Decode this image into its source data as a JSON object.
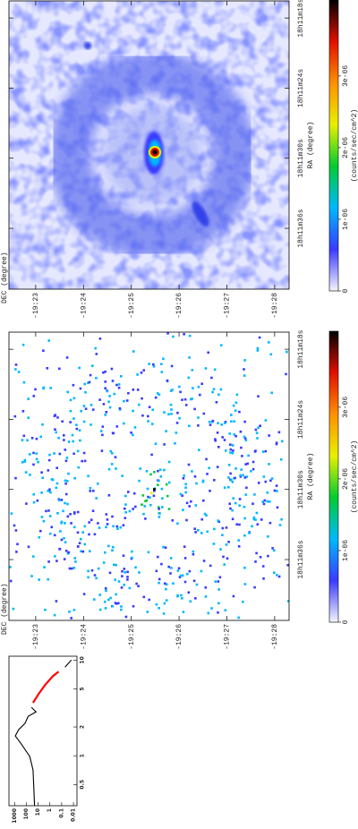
{
  "chart_data": [
    {
      "type": "image",
      "xlabel": "RA (degree)",
      "ylabel": "DEC (degree)",
      "xlim": [
        272.9217,
        272.8189
      ],
      "xticks": [
        {
          "value": 272.825,
          "label": "18h11m18s"
        },
        {
          "value": 272.85,
          "label": "18h11m24s"
        },
        {
          "value": 272.875,
          "label": "18h11m30s"
        },
        {
          "value": 272.9,
          "label": "18h11m36s"
        }
      ],
      "ylim": [
        -19.4717,
        -19.374
      ],
      "yticks": [
        {
          "value": -19.38333,
          "label": "-19:23"
        },
        {
          "value": -19.4,
          "label": "-19:24"
        },
        {
          "value": -19.41667,
          "label": "-19:25"
        },
        {
          "value": -19.43333,
          "label": "-19:26"
        },
        {
          "value": -19.45,
          "label": "-19:27"
        },
        {
          "value": -19.46667,
          "label": "-19:28"
        }
      ],
      "clim": [
        0,
        4.06e-06
      ],
      "cticks": [
        0,
        {
          "value": 1e-06,
          "label": "1e-06"
        },
        {
          "value": 2e-06,
          "label": "2e-06"
        },
        {
          "value": 3e-06,
          "label": "3e-06"
        }
      ],
      "clabel": "(counts/sec/cm^2)",
      "colormap": [
        "#f4f4ff",
        "#3a3aff",
        "#00b8ff",
        "#00cc30",
        "#e8f000",
        "#ff9000",
        "#e01000",
        "#000000"
      ]
    },
    {
      "type": "image",
      "xlabel": "RA (degree)",
      "ylabel": "DEC (degree)",
      "xlim": [
        272.9217,
        272.8189
      ],
      "xticks": [
        {
          "value": 272.825,
          "label": "18h11m18s"
        },
        {
          "value": 272.85,
          "label": "18h11m24s"
        },
        {
          "value": 272.875,
          "label": "18h11m30s"
        },
        {
          "value": 272.9,
          "label": "18h11m36s"
        }
      ],
      "ylim": [
        -19.4717,
        -19.374
      ],
      "yticks": [
        {
          "value": -19.38333,
          "label": "-19:23"
        },
        {
          "value": -19.4,
          "label": "-19:24"
        },
        {
          "value": -19.41667,
          "label": "-19:25"
        },
        {
          "value": -19.43333,
          "label": "-19:26"
        },
        {
          "value": -19.45,
          "label": "-19:27"
        },
        {
          "value": -19.46667,
          "label": "-19:28"
        }
      ],
      "clim": [
        0,
        4.06e-06
      ],
      "cticks": [
        0,
        {
          "value": 1e-06,
          "label": "1e-06"
        },
        {
          "value": 2e-06,
          "label": "2e-06"
        },
        {
          "value": 3e-06,
          "label": "3e-06"
        }
      ],
      "clabel": "(counts/sec/cm^2)",
      "colormap": [
        "#f4f4ff",
        "#3a3aff",
        "#00b8ff",
        "#00cc30",
        "#e8f000",
        "#ff9000",
        "#e01000",
        "#000000"
      ]
    },
    {
      "type": "line",
      "xscale": "log",
      "yscale": "log",
      "xlim": [
        0.3,
        11
      ],
      "xticks": [
        0.5,
        1,
        2,
        5,
        10
      ],
      "ylim": [
        0.005,
        3000
      ],
      "yticks": [
        0.01,
        0.1,
        1,
        10,
        100,
        1000
      ],
      "series": [
        {
          "color": "#000000",
          "x": [
            0.3,
            0.46,
            0.71,
            0.98,
            1.35,
            1.61,
            1.87,
            2.18,
            2.59,
            2.88,
            3.21,
            5.5,
            8.46,
            10.05
          ],
          "values": [
            20,
            23,
            27,
            51,
            290,
            860,
            460,
            130,
            70,
            15,
            37,
            null,
            0.052,
            0.015
          ]
        },
        {
          "color": "#ff0000",
          "x": [
            3.58,
            4.43,
            5.49,
            6.81,
            7.59
          ],
          "values": [
            27,
            9.2,
            2.6,
            0.55,
            0.18
          ]
        }
      ]
    }
  ]
}
